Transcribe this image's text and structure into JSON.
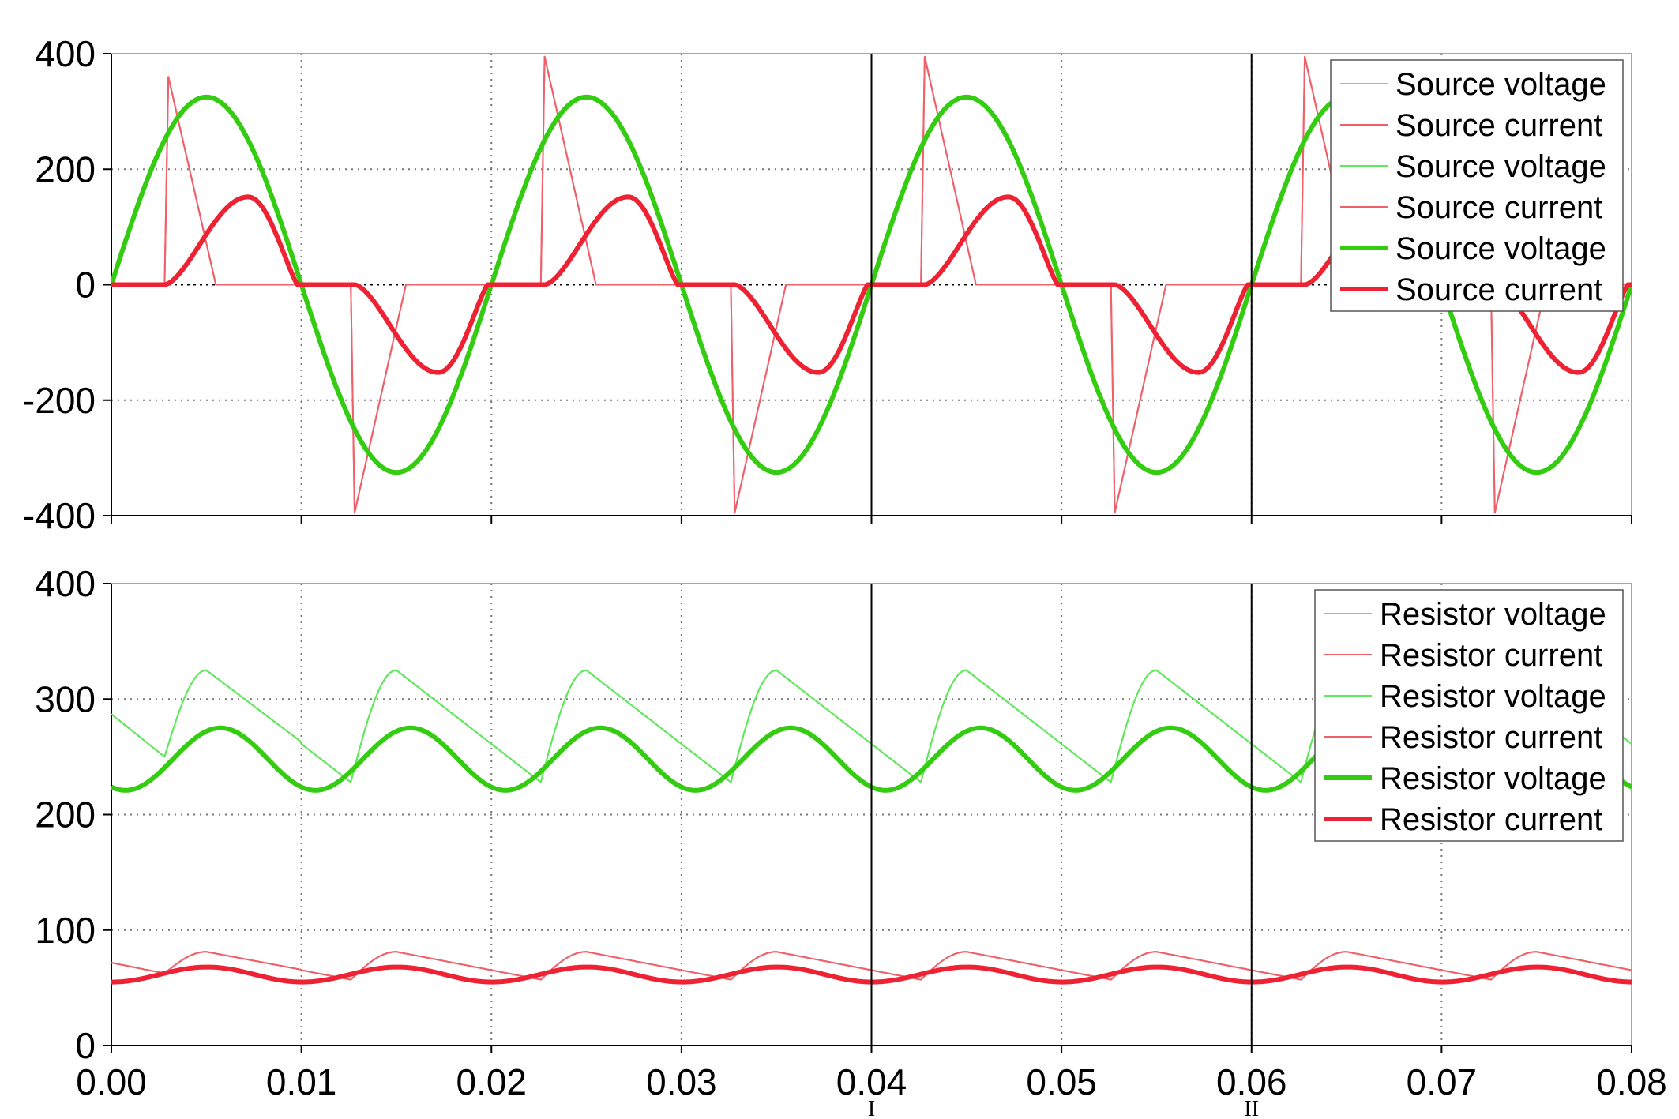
{
  "chart_data": [
    {
      "type": "line",
      "panel": "top",
      "title": "",
      "xlabel": "",
      "ylabel": "",
      "xlim": [
        0,
        0.08
      ],
      "ylim": [
        -400,
        400
      ],
      "x_ticks": [
        "0.00",
        "0.01",
        "0.02",
        "0.03",
        "0.04",
        "0.05",
        "0.06",
        "0.07",
        "0.08"
      ],
      "y_ticks": [
        "400",
        "200",
        "0",
        "-200",
        "-400"
      ],
      "grid": true,
      "legend_position": "top-right",
      "zero_line": true,
      "series": [
        {
          "name": "Source voltage",
          "color": "#5ee85a",
          "width": "thin",
          "description_values": "sine, amplitude 325, period 0.02 s, peaks at 0.005+0.02k"
        },
        {
          "name": "Source current",
          "color": "#f0606a",
          "width": "thin",
          "values_summary": {
            "peak_pos": 360,
            "peak_neg": -395,
            "pulse_start": 0.003,
            "pulse_end": 0.0055
          }
        },
        {
          "name": "Source voltage",
          "color": "#5ee85a",
          "width": "thin"
        },
        {
          "name": "Source current",
          "color": "#f0606a",
          "width": "thin"
        },
        {
          "name": "Source voltage",
          "color": "#33cc11",
          "width": "thick",
          "amplitude": 325,
          "period": 0.02
        },
        {
          "name": "Source current",
          "color": "#ee2233",
          "width": "thick",
          "peak": 152,
          "conduction_start": 0.0028,
          "peak_time": 0.0072,
          "conduction_end": 0.0098
        }
      ]
    },
    {
      "type": "line",
      "panel": "bottom",
      "title": "",
      "xlabel": "",
      "ylabel": "",
      "xlim": [
        0,
        0.08
      ],
      "ylim": [
        0,
        400
      ],
      "x_ticks": [
        "0.00",
        "0.01",
        "0.02",
        "0.03",
        "0.04",
        "0.05",
        "0.06",
        "0.07",
        "0.08"
      ],
      "y_ticks": [
        "400",
        "300",
        "200",
        "100",
        "0"
      ],
      "grid": true,
      "legend_position": "top-right",
      "series": [
        {
          "name": "Resistor voltage",
          "color": "#5ee85a",
          "width": "thin",
          "max": 325,
          "min": 228
        },
        {
          "name": "Resistor current",
          "color": "#f0606a",
          "width": "thin",
          "max": 81,
          "min": 60
        },
        {
          "name": "Resistor voltage",
          "color": "#5ee85a",
          "width": "thin"
        },
        {
          "name": "Resistor current",
          "color": "#f0606a",
          "width": "thin"
        },
        {
          "name": "Resistor voltage",
          "color": "#33cc11",
          "width": "thick",
          "max": 275,
          "min": 221
        },
        {
          "name": "Resistor current",
          "color": "#ee2233",
          "width": "thick",
          "max": 68,
          "min": 55
        }
      ]
    }
  ],
  "cursors": [
    {
      "label": "I",
      "x": 0.04
    },
    {
      "label": "II",
      "x": 0.06
    }
  ]
}
